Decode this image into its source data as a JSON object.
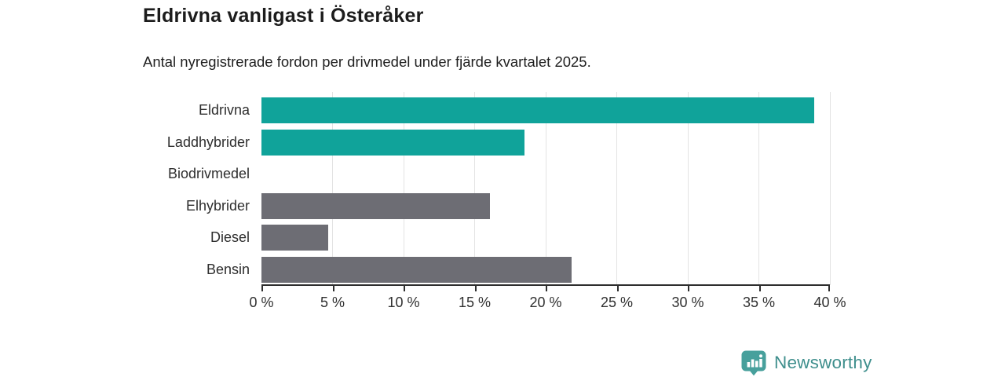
{
  "chart": {
    "title": "Eldrivna vanligast i Österåker",
    "subtitle": "Antal nyregistrerade fordon per drivmedel under fjärde kvartalet 2025."
  },
  "chart_data": {
    "type": "bar",
    "orientation": "horizontal",
    "title": "Eldrivna vanligast i Österåker",
    "subtitle": "Antal nyregistrerade fordon per drivmedel under fjärde kvartalet 2025.",
    "categories": [
      "Eldrivna",
      "Laddhybrider",
      "Biodrivmedel",
      "Elhybrider",
      "Diesel",
      "Bensin"
    ],
    "values": [
      38.9,
      18.5,
      0,
      16.1,
      4.7,
      21.8
    ],
    "bar_colors": [
      "#10a39a",
      "#10a39a",
      "#10a39a",
      "#6d6d74",
      "#6d6d74",
      "#6d6d74"
    ],
    "xlim": [
      0,
      40
    ],
    "x_ticks": [
      0,
      5,
      10,
      15,
      20,
      25,
      30,
      35,
      40
    ],
    "x_tick_labels": [
      "0 %",
      "5 %",
      "10 %",
      "15 %",
      "20 %",
      "25 %",
      "30 %",
      "35 %",
      "40 %"
    ],
    "grid": true,
    "legend": "none"
  },
  "colors": {
    "electric_teal": "#10a39a",
    "fossil_gray": "#6d6d74",
    "gridline": "#e3e3e3",
    "axis": "#2e2e2e",
    "brand_teal": "#3f8f8d"
  },
  "footer": {
    "brand": "Newsworthy",
    "logo_icon": "newsworthy-speech-bubble-bar-chart-icon"
  }
}
